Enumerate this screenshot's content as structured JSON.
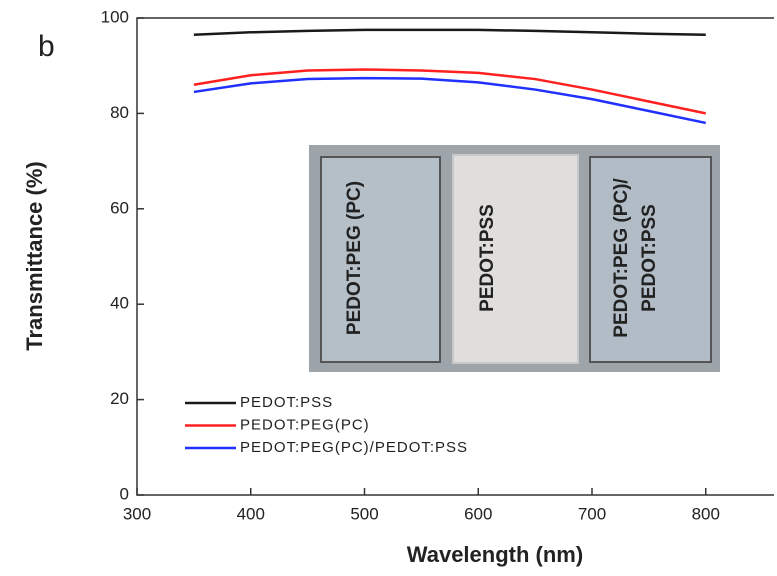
{
  "chart_data": {
    "type": "line",
    "panel_label": "b",
    "xlabel": "Wavelength (nm)",
    "ylabel": "Transmittance (%)",
    "x": [
      350,
      400,
      450,
      500,
      550,
      600,
      650,
      700,
      750,
      800
    ],
    "series": [
      {
        "name": "PEDOT:PSS",
        "color": "#1a1a1a",
        "values": [
          96.5,
          97,
          97.3,
          97.5,
          97.5,
          97.5,
          97.3,
          97,
          96.7,
          96.5
        ]
      },
      {
        "name": "PEDOT:PEG(PC)",
        "color": "#ff2020",
        "values": [
          86,
          88,
          89,
          89.2,
          89,
          88.5,
          87.2,
          85,
          82.5,
          80
        ]
      },
      {
        "name": "PEDOT:PEG(PC)/PEDOT:PSS",
        "color": "#2030ff",
        "values": [
          84.5,
          86.3,
          87.2,
          87.4,
          87.3,
          86.5,
          85,
          83,
          80.5,
          78
        ]
      }
    ],
    "xlim": [
      300,
      860
    ],
    "xticks": [
      300,
      400,
      500,
      600,
      700,
      800
    ],
    "ylim": [
      0,
      100
    ],
    "yticks": [
      0,
      20,
      40,
      60,
      80,
      100
    ],
    "legend": "lower left"
  },
  "inset": {
    "labels": [
      "PEDOT:PEG (PC)",
      "PEDOT:PSS",
      "PEDOT:PEG (PC)/",
      "PEDOT:PSS"
    ]
  }
}
